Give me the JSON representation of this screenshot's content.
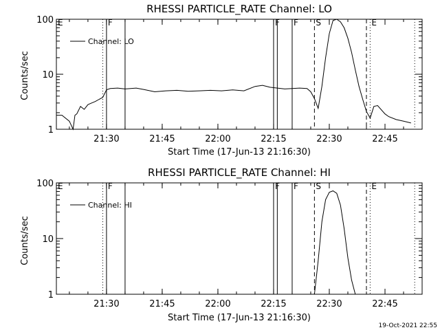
{
  "timestamp": "19-Oct-2021 22:55",
  "chart_data": [
    {
      "type": "line",
      "title": "RHESSI PARTICLE_RATE Channel: LO",
      "xlabel": "Start Time (17-Jun-13 21:16:30)",
      "ylabel": "Counts/sec",
      "x_ticks": [
        "21:30",
        "21:45",
        "22:00",
        "22:15",
        "22:30",
        "22:45"
      ],
      "y_ticks": [
        "1",
        "10",
        "100"
      ],
      "xlim": [
        "21:16:30",
        "22:55:00"
      ],
      "ylim": [
        1,
        100
      ],
      "yscale": "log",
      "legend": "top-left",
      "series": [
        {
          "name": "Channel: LO",
          "x": [
            "21:16:30",
            "21:18",
            "21:20",
            "21:21",
            "21:21:30",
            "21:22",
            "21:23",
            "21:24",
            "21:25",
            "21:26",
            "21:27",
            "21:28",
            "21:29",
            "21:30",
            "21:31",
            "21:33",
            "21:35",
            "21:38",
            "21:40",
            "21:43",
            "21:46",
            "21:49",
            "21:52",
            "21:55",
            "21:58",
            "22:01",
            "22:04",
            "22:07",
            "22:10",
            "22:12",
            "22:14",
            "22:16",
            "22:18",
            "22:20",
            "22:22",
            "22:24",
            "22:25",
            "22:26",
            "22:27",
            "22:28",
            "22:29",
            "22:30",
            "22:31",
            "22:32",
            "22:33",
            "22:34",
            "22:35",
            "22:36",
            "22:37",
            "22:38",
            "22:39",
            "22:40",
            "22:41",
            "22:42",
            "22:43",
            "22:45",
            "22:46",
            "22:48",
            "22:50",
            "22:52"
          ],
          "y": [
            1.8,
            1.8,
            1.4,
            1.0,
            1.8,
            1.9,
            2.6,
            2.3,
            2.8,
            3.0,
            3.2,
            3.5,
            3.8,
            5.2,
            5.5,
            5.6,
            5.4,
            5.6,
            5.3,
            4.8,
            5.0,
            5.1,
            4.9,
            5.0,
            5.1,
            5.0,
            5.2,
            5.0,
            6.0,
            6.3,
            5.8,
            5.6,
            5.4,
            5.5,
            5.6,
            5.5,
            4.8,
            3.6,
            2.4,
            6,
            20,
            55,
            95,
            100,
            90,
            70,
            45,
            25,
            12,
            6,
            3.5,
            2.1,
            1.6,
            2.6,
            2.7,
            1.9,
            1.7,
            1.5,
            1.4,
            1.3
          ]
        }
      ],
      "markers": [
        {
          "time": "21:16:30",
          "label": "E",
          "style": "none"
        },
        {
          "time": "21:29",
          "label": "",
          "style": "dotted"
        },
        {
          "time": "21:30",
          "label": "F",
          "style": "solid"
        },
        {
          "time": "21:35",
          "label": "",
          "style": "solid"
        },
        {
          "time": "22:15",
          "label": "F",
          "style": "solid"
        },
        {
          "time": "22:16",
          "label": "",
          "style": "solid"
        },
        {
          "time": "22:20",
          "label": "F",
          "style": "solid"
        },
        {
          "time": "22:26",
          "label": "S",
          "style": "dashed"
        },
        {
          "time": "22:40",
          "label": "",
          "style": "dashed"
        },
        {
          "time": "22:41",
          "label": "E",
          "style": "dotted"
        },
        {
          "time": "22:53",
          "label": "",
          "style": "dotted"
        }
      ]
    },
    {
      "type": "line",
      "title": "RHESSI PARTICLE_RATE Channel: HI",
      "xlabel": "Start Time (17-Jun-13 21:16:30)",
      "ylabel": "Counts/sec",
      "x_ticks": [
        "21:30",
        "21:45",
        "22:00",
        "22:15",
        "22:30",
        "22:45"
      ],
      "y_ticks": [
        "1",
        "10",
        "100"
      ],
      "xlim": [
        "21:16:30",
        "22:55:00"
      ],
      "ylim": [
        1,
        100
      ],
      "yscale": "log",
      "legend": "top-left",
      "series": [
        {
          "name": "Channel: HI",
          "x": [
            "22:26",
            "22:27",
            "22:28",
            "22:29",
            "22:30",
            "22:31",
            "22:32",
            "22:33",
            "22:34",
            "22:35",
            "22:36",
            "22:37"
          ],
          "y": [
            1.0,
            4.0,
            20,
            50,
            68,
            72,
            65,
            40,
            15,
            4.5,
            1.8,
            1.0
          ]
        }
      ],
      "markers": [
        {
          "time": "21:16:30",
          "label": "E",
          "style": "none"
        },
        {
          "time": "21:29",
          "label": "",
          "style": "dotted"
        },
        {
          "time": "21:30",
          "label": "F",
          "style": "solid"
        },
        {
          "time": "21:35",
          "label": "",
          "style": "solid"
        },
        {
          "time": "22:15",
          "label": "F",
          "style": "solid"
        },
        {
          "time": "22:16",
          "label": "",
          "style": "solid"
        },
        {
          "time": "22:20",
          "label": "F",
          "style": "solid"
        },
        {
          "time": "22:26",
          "label": "S",
          "style": "dashed"
        },
        {
          "time": "22:40",
          "label": "",
          "style": "dashed"
        },
        {
          "time": "22:41",
          "label": "E",
          "style": "dotted"
        },
        {
          "time": "22:53",
          "label": "",
          "style": "dotted"
        }
      ]
    }
  ]
}
